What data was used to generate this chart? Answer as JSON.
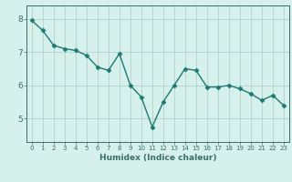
{
  "x": [
    0,
    1,
    2,
    3,
    4,
    5,
    6,
    7,
    8,
    9,
    10,
    11,
    12,
    13,
    14,
    15,
    16,
    17,
    18,
    19,
    20,
    21,
    22,
    23
  ],
  "y": [
    7.95,
    7.65,
    7.2,
    7.1,
    7.05,
    6.9,
    6.55,
    6.45,
    6.95,
    6.0,
    5.65,
    4.75,
    5.5,
    6.0,
    6.5,
    6.45,
    5.95,
    5.95,
    6.0,
    5.9,
    5.75,
    5.55,
    5.7,
    5.4
  ],
  "line_color": "#1c7a72",
  "marker": "D",
  "markersize": 2.5,
  "linewidth": 1.0,
  "bg_color": "#d6f0ec",
  "grid_color": "#a8ccc8",
  "axis_color": "#3a6e68",
  "tick_color": "#3a6e68",
  "xlabel": "Humidex (Indice chaleur)",
  "xlim": [
    -0.5,
    23.5
  ],
  "ylim": [
    4.3,
    8.4
  ],
  "yticks": [
    5,
    6,
    7,
    8
  ],
  "xticks": [
    0,
    1,
    2,
    3,
    4,
    5,
    6,
    7,
    8,
    9,
    10,
    11,
    12,
    13,
    14,
    15,
    16,
    17,
    18,
    19,
    20,
    21,
    22,
    23
  ],
  "figsize": [
    3.2,
    2.0
  ],
  "dpi": 100
}
